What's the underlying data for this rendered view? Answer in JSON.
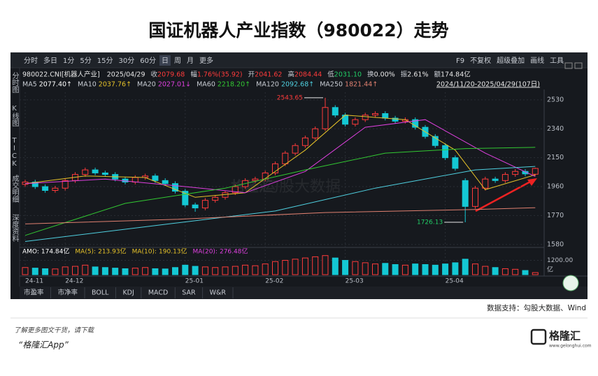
{
  "title": "国证机器人产业指数（980022）走势",
  "toolbar": {
    "periods": [
      "分时",
      "多日",
      "1分",
      "5分",
      "15分",
      "30分",
      "60分",
      "日",
      "周",
      "月",
      "更多"
    ],
    "tools": [
      "F9",
      "不复权",
      "超级叠加",
      "画线",
      "工具"
    ]
  },
  "sidebar": [
    "分时图",
    "K线图",
    "TICK",
    "成交明细",
    "深度资料"
  ],
  "info": {
    "symbol": "980022.CNI[机器人产业]",
    "date": "2025/04/29",
    "fields": [
      {
        "label": "收",
        "value": "2079.68"
      },
      {
        "label": "幅",
        "value": "1.76%(35.92)"
      },
      {
        "label": "开",
        "value": "2041.62"
      },
      {
        "label": "高",
        "value": "2084.44"
      },
      {
        "label": "低",
        "value": "2031.10"
      },
      {
        "label": "换",
        "value": "0.00%"
      },
      {
        "label": "振",
        "value": "2.61%"
      },
      {
        "label": "额",
        "value": "174.84亿"
      }
    ]
  },
  "range": "2024/11/20-2025/04/29(107日)",
  "watermarks": [
    "格隆汇",
    "勾股大数据"
  ],
  "indicator_tabs": [
    "市盈率",
    "市净率",
    "BOLL",
    "KDJ",
    "MACD",
    "SAR",
    "W&R"
  ],
  "source": "数据支持：勾股大数据、Wind",
  "footer": {
    "note": "了解更多图文干货，请下载",
    "app": "“格隆汇App”",
    "logo": "格隆汇",
    "logo_url": "www.gelonghui.com"
  },
  "chart_data": {
    "type": "candlestick",
    "open": [
      1975,
      1990,
      1960,
      1935,
      1950,
      2000,
      2040,
      2070,
      2050,
      2040,
      2010,
      1990,
      2020,
      2030,
      2000,
      1980,
      1930,
      1840,
      1820,
      1870,
      1890,
      1920,
      1960,
      2000,
      2010,
      2050,
      2110,
      2180,
      2230,
      2280,
      2340,
      2480,
      2430,
      2370,
      2400,
      2430,
      2440,
      2410,
      2390,
      2400,
      2350,
      2290,
      2230,
      2150,
      2000,
      1830,
      1950,
      2010,
      2000,
      2040,
      2060,
      2041.62
    ],
    "high": [
      2005,
      2005,
      1975,
      1965,
      2015,
      2055,
      2085,
      2085,
      2065,
      2055,
      2025,
      2035,
      2045,
      2045,
      2015,
      1995,
      1945,
      1855,
      1885,
      1905,
      1935,
      1975,
      2015,
      2025,
      2065,
      2125,
      2195,
      2245,
      2295,
      2355,
      2543.65,
      2495,
      2445,
      2415,
      2445,
      2455,
      2455,
      2425,
      2415,
      2415,
      2365,
      2305,
      2245,
      2165,
      2015,
      1965,
      2025,
      2025,
      2055,
      2075,
      2075,
      2084.44
    ],
    "low": [
      1960,
      1945,
      1920,
      1920,
      1935,
      1985,
      2025,
      2035,
      2025,
      1995,
      1975,
      1975,
      2005,
      1985,
      1965,
      1915,
      1825,
      1795,
      1805,
      1855,
      1875,
      1905,
      1945,
      1985,
      1995,
      2035,
      2095,
      2165,
      2215,
      2265,
      2325,
      2415,
      2355,
      2355,
      2385,
      2415,
      2395,
      2375,
      2375,
      2335,
      2275,
      2215,
      2135,
      2065,
      1726.13,
      1815,
      1935,
      1985,
      1985,
      2025,
      2028,
      2031.1
    ],
    "close": [
      1990,
      1960,
      1935,
      1950,
      2000,
      2040,
      2070,
      2050,
      2040,
      2010,
      1990,
      2020,
      2030,
      2000,
      1980,
      1930,
      1840,
      1820,
      1870,
      1890,
      1920,
      1960,
      2000,
      2010,
      2050,
      2110,
      2180,
      2230,
      2280,
      2340,
      2480,
      2430,
      2370,
      2400,
      2430,
      2440,
      2410,
      2390,
      2400,
      2350,
      2290,
      2230,
      2150,
      2080,
      1830,
      1950,
      2010,
      2000,
      2040,
      2060,
      2043.76,
      2079.68
    ],
    "up_color": "#ff3b3b",
    "down_color": "#14c8d4",
    "ylim": [
      1570,
      2580
    ],
    "yticks": [
      1580,
      1770,
      1960,
      2150,
      2340,
      2530
    ],
    "xticks": [
      {
        "value": 0,
        "label": "24-11"
      },
      {
        "value": 4,
        "label": "24-12"
      },
      {
        "value": 16,
        "label": "25-01"
      },
      {
        "value": 24,
        "label": "25-02"
      },
      {
        "value": 32,
        "label": "25-03"
      },
      {
        "value": 42,
        "label": "25-04"
      }
    ],
    "annotations": [
      {
        "index": 30,
        "label": "2543.65",
        "at": "high"
      },
      {
        "index": 44,
        "label": "1726.13",
        "at": "low"
      }
    ],
    "moving_averages": [
      {
        "label": "MA5",
        "value": "2077.40↑",
        "color": "#ffffff"
      },
      {
        "label": "MA10",
        "value": "2037.76↑",
        "color": "#e6c229",
        "x": [
          0,
          6,
          12,
          17,
          22,
          28,
          32,
          38,
          43,
          46,
          51
        ],
        "values": [
          1980,
          2030,
          2020,
          1890,
          1920,
          2200,
          2430,
          2400,
          2200,
          1940,
          2037.76
        ]
      },
      {
        "label": "MA20",
        "value": "2027.01↓",
        "color": "#e040e0",
        "x": [
          0,
          8,
          16,
          22,
          28,
          34,
          40,
          46,
          51
        ],
        "values": [
          1980,
          2010,
          1960,
          1920,
          2060,
          2350,
          2400,
          2180,
          2027.01
        ]
      },
      {
        "label": "MA60",
        "value": "2218.20↑",
        "color": "#32c832",
        "x": [
          0,
          10,
          20,
          28,
          36,
          44,
          51
        ],
        "values": [
          1640,
          1850,
          1950,
          2070,
          2180,
          2210,
          2218.2
        ]
      },
      {
        "label": "MA120",
        "value": "2092.68↑",
        "color": "#4fd0e0",
        "x": [
          0,
          15,
          25,
          35,
          45,
          51
        ],
        "values": [
          1600,
          1720,
          1800,
          1950,
          2070,
          2092.68
        ]
      },
      {
        "label": "MA250",
        "value": "1821.44↑",
        "color": "#e08070",
        "x": [
          0,
          15,
          30,
          45,
          51
        ],
        "values": [
          1715,
          1745,
          1790,
          1810,
          1821.44
        ]
      }
    ],
    "volume": {
      "values": [
        600,
        550,
        500,
        480,
        650,
        700,
        800,
        650,
        600,
        550,
        500,
        550,
        600,
        500,
        480,
        600,
        800,
        700,
        650,
        600,
        650,
        700,
        800,
        750,
        900,
        1100,
        1200,
        1300,
        1400,
        1500,
        1600,
        1400,
        1200,
        1100,
        1000,
        900,
        950,
        850,
        800,
        900,
        850,
        800,
        900,
        1000,
        1300,
        900,
        700,
        600,
        500,
        450,
        350,
        175
      ],
      "ylim": [
        0,
        1700
      ],
      "yticks": [
        {
          "value": 1200,
          "label": "1200.00"
        }
      ],
      "unit": "亿",
      "legend": [
        {
          "label": "AMO:",
          "value": "174.84亿",
          "color": "#ffffff"
        },
        {
          "label": "MA(5):",
          "value": "213.93亿",
          "color": "#e6c229"
        },
        {
          "label": "MA(10):",
          "value": "190.13亿",
          "color": "#e6c229"
        },
        {
          "label": "MA(20):",
          "value": "276.48亿",
          "color": "#e040e0"
        }
      ]
    }
  }
}
